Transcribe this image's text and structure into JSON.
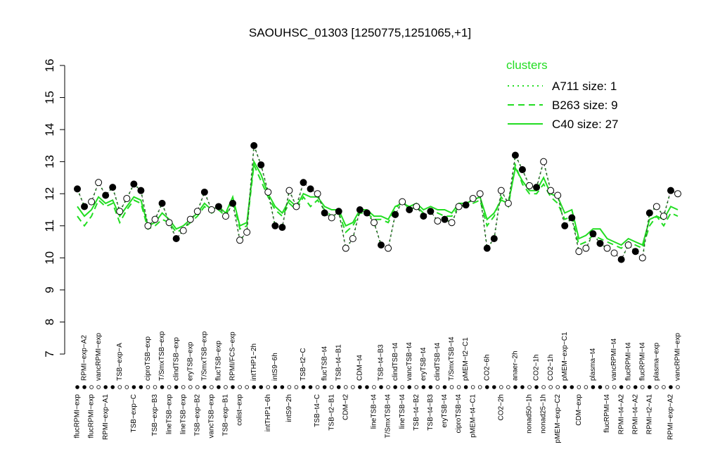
{
  "chart_data": {
    "type": "line",
    "title": "SAOUHSC_01303 [1250775,1251065,+1]",
    "legend_title": "clusters",
    "legend_position": "top-right",
    "point_line_color": "#333333",
    "ylim": [
      7,
      16
    ],
    "yticks": [
      7,
      8,
      9,
      10,
      11,
      12,
      13,
      14,
      15,
      16
    ],
    "categories": [
      "flucRPMI−exp",
      "RPMI−exp−A2",
      "flucRPMI−exp",
      "vancRPMI−exp",
      "RPMI−exp−A1",
      null,
      "TSB−exp−A",
      null,
      "TSB−exp−C",
      null,
      "ciproTSB−exp",
      "TSB−exp−B3",
      "T/SmxTSB−exp",
      "lineTSB−exp",
      "clindTSB−exp",
      "lineTSB−exp",
      "eryTSB−exp",
      "TSB−exp−B2",
      "T/SmxTSB−exp",
      "vancTSB−exp",
      "flucTSB−exp",
      "TSB−exp−B1",
      "RPMI/FCS−exp",
      "colist−exp",
      null,
      "intTHP1−2h",
      null,
      "intTHP1−6h",
      "intS9−6h",
      null,
      "intS9−2h",
      null,
      "TSB−t2−C",
      null,
      "TSB−t4−C",
      "flucTSB−t4",
      "TSB−t2−B1",
      "TSB−t4−B1",
      "CDM−t2",
      null,
      "CDM−t4",
      null,
      "lineTSB−t4",
      "TSB−t4−B3",
      "T/SmxTSB−t4",
      "clindTSB−t4",
      "lineTSB−t4",
      "vancTSB−t4",
      "TSB−t4−B2",
      "eryTSB−t4",
      "TSB−t4−B3",
      "clindTSB−t4",
      "eryTSB−t4",
      "T/SmxTSB−t4",
      "ciproTSB−t4",
      "pMEM−t2−C1",
      "pMEM−t4−C1",
      null,
      "CO2−6h",
      null,
      "CO2−2h",
      null,
      "anaer−2h",
      null,
      "nonad50−1h",
      "CO2−1h",
      "nonad25−1h",
      "CO2−1h",
      "pMEM−exp−C2",
      "pMEM−exp−C1",
      null,
      "CDM−exp",
      null,
      "plasma−t4",
      null,
      "flucRPMI−t4",
      "vancRPMI−t4",
      "RPMI−t4−A2",
      "flucRPMI−t4",
      "RPMI−t4−A2",
      "flucRPMI−t4",
      "RPMI−t2−A1",
      "plasma−exp",
      null,
      "RPMI−exp−A2",
      "vancRPMI−exp"
    ],
    "values": [
      12.15,
      11.6,
      11.75,
      12.35,
      11.95,
      12.2,
      11.45,
      11.85,
      12.3,
      12.1,
      11.0,
      11.2,
      11.7,
      11.1,
      10.6,
      10.85,
      11.2,
      11.45,
      12.05,
      11.5,
      11.6,
      11.3,
      11.7,
      10.55,
      10.8,
      13.5,
      12.9,
      12.05,
      11.0,
      10.95,
      12.1,
      11.6,
      12.35,
      12.15,
      12.0,
      11.4,
      11.25,
      11.45,
      10.3,
      10.6,
      11.5,
      11.4,
      11.1,
      10.4,
      10.3,
      11.35,
      11.75,
      11.5,
      11.6,
      11.3,
      11.45,
      11.15,
      11.2,
      11.1,
      11.6,
      11.65,
      11.85,
      12.0,
      10.3,
      10.6,
      12.1,
      11.7,
      13.2,
      12.75,
      12.25,
      12.2,
      13.0,
      12.1,
      11.95,
      11.0,
      11.25,
      10.2,
      10.3,
      10.75,
      10.45,
      10.3,
      10.15,
      9.95,
      10.4,
      10.2,
      10.0,
      11.4,
      11.6,
      11.3,
      12.1,
      12.0
    ],
    "marker_fill": [
      "black",
      "black",
      "white",
      "white",
      "black",
      "black",
      "white",
      "white",
      "black",
      "black",
      "white",
      "white",
      "black",
      "white",
      "black",
      "white",
      "white",
      "white",
      "black",
      "white",
      "black",
      "white",
      "black",
      "white",
      "white",
      "black",
      "black",
      "white",
      "black",
      "black",
      "white",
      "white",
      "black",
      "black",
      "white",
      "black",
      "white",
      "black",
      "white",
      "white",
      "black",
      "black",
      "white",
      "black",
      "white",
      "black",
      "white",
      "black",
      "white",
      "black",
      "black",
      "white",
      "black",
      "white",
      "white",
      "black",
      "white",
      "white",
      "black",
      "black",
      "white",
      "white",
      "black",
      "black",
      "white",
      "black",
      "white",
      "white",
      "white",
      "black",
      "black",
      "white",
      "white",
      "black",
      "black",
      "white",
      "white",
      "black",
      "white",
      "black",
      "white",
      "black",
      "white",
      "white",
      "black",
      "white"
    ],
    "series": [
      {
        "name": "A711 size: 1",
        "color": "#22dd22",
        "style": "dotted",
        "values": [
          12.15,
          11.6,
          11.75,
          12.35,
          11.95,
          12.2,
          11.45,
          11.85,
          12.3,
          12.1,
          11.0,
          11.2,
          11.7,
          11.1,
          10.6,
          10.85,
          11.2,
          11.45,
          12.05,
          11.5,
          11.6,
          11.3,
          11.7,
          10.55,
          10.8,
          13.5,
          12.9,
          12.05,
          11.0,
          10.95,
          12.1,
          11.6,
          12.35,
          12.15,
          12.0,
          11.4,
          11.25,
          11.45,
          10.3,
          10.6,
          11.5,
          11.4,
          11.1,
          10.4,
          10.3,
          11.35,
          11.75,
          11.5,
          11.6,
          11.3,
          11.45,
          11.15,
          11.2,
          11.1,
          11.6,
          11.65,
          11.85,
          12.0,
          10.3,
          10.6,
          12.1,
          11.7,
          13.2,
          12.75,
          12.25,
          12.2,
          13.0,
          12.1,
          11.95,
          11.0,
          11.25,
          10.2,
          10.3,
          10.75,
          10.45,
          10.3,
          10.15,
          9.95,
          10.4,
          10.2,
          10.0,
          11.4,
          11.6,
          11.3,
          12.1,
          12.0
        ]
      },
      {
        "name": "B263 size: 9",
        "color": "#22dd22",
        "style": "dashed",
        "values": [
          11.3,
          11.0,
          11.3,
          11.8,
          11.6,
          11.7,
          11.1,
          11.5,
          11.8,
          11.7,
          10.9,
          11.0,
          11.2,
          11.1,
          10.8,
          10.9,
          11.1,
          11.3,
          11.6,
          11.4,
          11.5,
          11.3,
          11.8,
          10.9,
          11.0,
          12.9,
          12.4,
          11.9,
          11.5,
          11.3,
          11.7,
          11.5,
          11.9,
          11.6,
          11.8,
          11.5,
          11.3,
          11.4,
          10.8,
          11.0,
          11.4,
          11.4,
          11.2,
          11.2,
          11.1,
          11.5,
          11.8,
          11.5,
          11.6,
          11.4,
          11.5,
          11.4,
          11.3,
          11.3,
          11.6,
          11.6,
          11.7,
          11.8,
          11.0,
          11.3,
          11.9,
          11.6,
          12.9,
          12.3,
          12.0,
          12.0,
          12.3,
          11.9,
          11.7,
          11.2,
          11.3,
          10.4,
          10.5,
          10.7,
          10.6,
          10.5,
          10.4,
          10.3,
          10.5,
          10.4,
          10.3,
          11.0,
          11.3,
          11.0,
          11.4,
          11.3
        ]
      },
      {
        "name": "C40 size: 27",
        "color": "#22dd22",
        "style": "solid",
        "values": [
          11.6,
          11.3,
          11.5,
          11.9,
          11.7,
          11.8,
          11.3,
          11.6,
          11.9,
          11.8,
          11.0,
          11.1,
          11.4,
          11.2,
          10.9,
          11.0,
          11.2,
          11.4,
          11.7,
          11.5,
          11.6,
          11.4,
          11.9,
          11.0,
          11.1,
          13.0,
          12.6,
          12.0,
          11.6,
          11.4,
          11.8,
          11.6,
          12.0,
          11.9,
          11.9,
          11.6,
          11.5,
          11.5,
          11.0,
          11.1,
          11.5,
          11.5,
          11.3,
          11.3,
          11.2,
          11.6,
          11.7,
          11.6,
          11.7,
          11.5,
          11.6,
          11.5,
          11.5,
          11.4,
          11.7,
          11.7,
          11.8,
          11.9,
          11.2,
          11.4,
          11.8,
          11.7,
          12.8,
          12.4,
          12.1,
          12.1,
          12.5,
          12.0,
          11.9,
          11.4,
          11.5,
          10.6,
          10.7,
          10.9,
          10.9,
          10.6,
          10.5,
          10.4,
          10.6,
          10.5,
          10.4,
          11.2,
          11.3,
          11.2,
          11.6,
          11.5
        ]
      }
    ]
  }
}
